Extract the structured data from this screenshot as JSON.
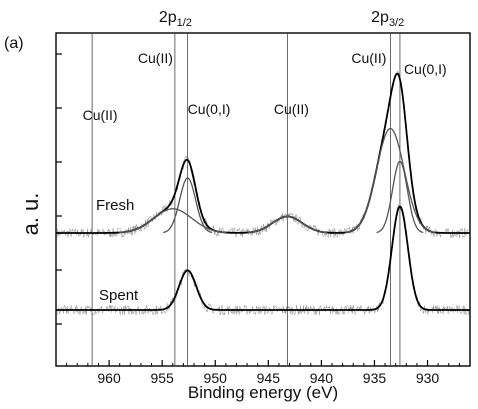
{
  "chart_data": {
    "type": "line",
    "panel_label": "(a)",
    "xlabel": "Binding energy (eV)",
    "ylabel": "a. u.",
    "x_reversed": true,
    "xlim": [
      965,
      926
    ],
    "x_ticks": [
      960,
      955,
      950,
      945,
      940,
      935,
      930
    ],
    "y_ticks_count": 6,
    "headers": [
      {
        "main": "2p",
        "sub": "1/2",
        "x": 953.0
      },
      {
        "main": "2p",
        "sub": "3/2",
        "x": 933.0
      }
    ],
    "reference_lines": [
      {
        "x": 961.6,
        "label": "Cu(II)"
      },
      {
        "x": 953.8,
        "label": "Cu(II)"
      },
      {
        "x": 952.6,
        "label": "Cu(0,I)"
      },
      {
        "x": 943.2,
        "label": "Cu(II)"
      },
      {
        "x": 933.5,
        "label": "Cu(II)"
      },
      {
        "x": 932.6,
        "label": "Cu(0,I)"
      }
    ],
    "series": [
      {
        "name": "Fresh",
        "baseline": 0.0,
        "components": [
          {
            "role": "envelope",
            "peaks": [
              [
                954.0,
                0.22,
                1.8
              ],
              [
                952.6,
                0.5,
                0.75
              ],
              [
                943.2,
                0.15,
                1.4
              ],
              [
                933.5,
                0.95,
                1.3
              ],
              [
                932.6,
                0.65,
                0.7
              ]
            ]
          },
          {
            "role": "component",
            "peaks": [
              [
                954.0,
                0.22,
                1.8
              ]
            ]
          },
          {
            "role": "component",
            "peaks": [
              [
                952.6,
                0.5,
                0.75
              ]
            ]
          },
          {
            "role": "component",
            "peaks": [
              [
                943.2,
                0.15,
                1.4
              ]
            ]
          },
          {
            "role": "component",
            "peaks": [
              [
                933.5,
                0.95,
                1.3
              ]
            ]
          },
          {
            "role": "component",
            "peaks": [
              [
                932.6,
                0.65,
                0.7
              ]
            ]
          }
        ]
      },
      {
        "name": "Spent",
        "baseline": -0.7,
        "components": [
          {
            "role": "envelope",
            "peaks": [
              [
                952.6,
                0.36,
                0.8
              ],
              [
                932.6,
                0.94,
                0.75
              ]
            ]
          }
        ]
      }
    ]
  }
}
